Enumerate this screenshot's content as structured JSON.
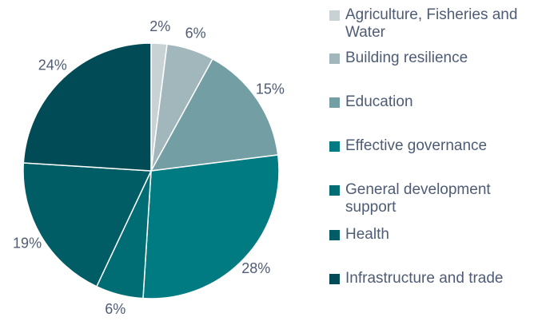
{
  "chart_data": {
    "type": "pie",
    "categories": [
      "Agriculture, Fisheries and Water",
      "Building resilience",
      "Education",
      "Effective governance",
      "General development support",
      "Health",
      "Infrastructure and trade"
    ],
    "values": [
      2,
      6,
      15,
      28,
      6,
      19,
      24
    ],
    "value_labels": [
      "2%",
      "6%",
      "15%",
      "28%",
      "6%",
      "19%",
      "24%"
    ],
    "colors": [
      "#c8d2d5",
      "#a2b7bb",
      "#739fa4",
      "#007b81",
      "#006c73",
      "#005d65",
      "#004b55"
    ],
    "legend": "right"
  }
}
